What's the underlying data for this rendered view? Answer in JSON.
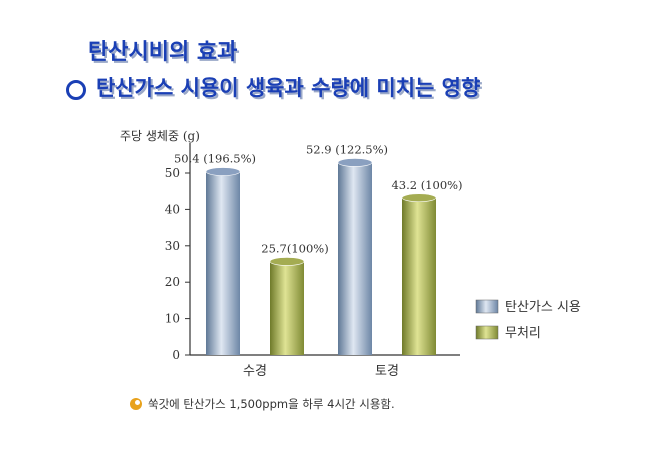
{
  "slide": {
    "title": "탄산시비의 효과",
    "subtitle": "탄산가스 시용이 생육과 수량에 미치는 영향",
    "footnote": "쑥갓에 탄산가스 1,500ppm을 하루 4시간 시용함.",
    "footnote_icon": "sun-icon"
  },
  "chart_data": {
    "type": "bar",
    "ylabel": "주당 생체중 (g)",
    "ylim": [
      0,
      50
    ],
    "yticks": [
      0,
      10,
      20,
      30,
      40,
      50
    ],
    "categories": [
      "수경",
      "토경"
    ],
    "series": [
      {
        "name": "탄산가스 시용",
        "values": [
          50.4,
          52.9
        ],
        "labels": [
          "50.4 (196.5%)",
          "52.9 (122.5%)"
        ],
        "color": "#8aa0c0"
      },
      {
        "name": "무처리",
        "values": [
          25.7,
          43.2
        ],
        "labels": [
          "25.7(100%)",
          "43.2 (100%)"
        ],
        "color": "#a4ac52"
      }
    ],
    "legend_position": "right",
    "grid": false
  }
}
